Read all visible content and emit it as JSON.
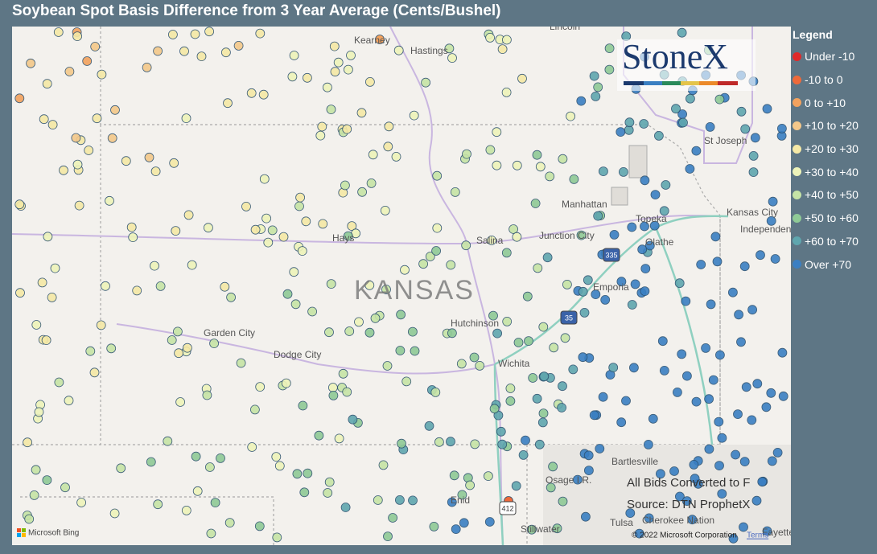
{
  "header": {
    "title": "Soybean Spot Basis Difference from 3 Year Average (Cents/Bushel)"
  },
  "legend": {
    "title": "Legend",
    "items": [
      {
        "label": "Under -10",
        "color": "#e02a2a"
      },
      {
        "label": "-10 to 0",
        "color": "#ee6a3a"
      },
      {
        "label": "0 to +10",
        "color": "#f2a25e"
      },
      {
        "label": "+10 to +20",
        "color": "#f4c88a"
      },
      {
        "label": "+20 to +30",
        "color": "#f5e9a6"
      },
      {
        "label": "+30 to +40",
        "color": "#eef4ba"
      },
      {
        "label": "+40 to +50",
        "color": "#c6e4a6"
      },
      {
        "label": "+50 to +60",
        "color": "#8fca96"
      },
      {
        "label": "+60 to +70",
        "color": "#5fa6ae"
      },
      {
        "label": "Over +70",
        "color": "#3a7fc2"
      }
    ]
  },
  "map": {
    "logo": "StoneX",
    "state_label": "KANSAS",
    "cities": [
      "Kearney",
      "Hastings",
      "Lincoln",
      "St Joseph",
      "Manhattan",
      "Topeka",
      "Kansas City",
      "Independence",
      "Junction City",
      "Olathe",
      "Hays",
      "Salina",
      "Emporia",
      "Garden City",
      "Dodge City",
      "Hutchinson",
      "Wichita",
      "Bartlesville",
      "Osage I.R.",
      "Enid",
      "Stillwater",
      "Cherokee Nation",
      "Tulsa",
      "Fayette"
    ],
    "shields": [
      "335",
      "35",
      "412"
    ],
    "notes": [
      "All Bids Converted to F",
      "Source: DTN ProphetX"
    ],
    "attribution": "Microsoft Bing",
    "copyright": "© 2022 Microsoft Corporation",
    "terms": "Terms"
  }
}
